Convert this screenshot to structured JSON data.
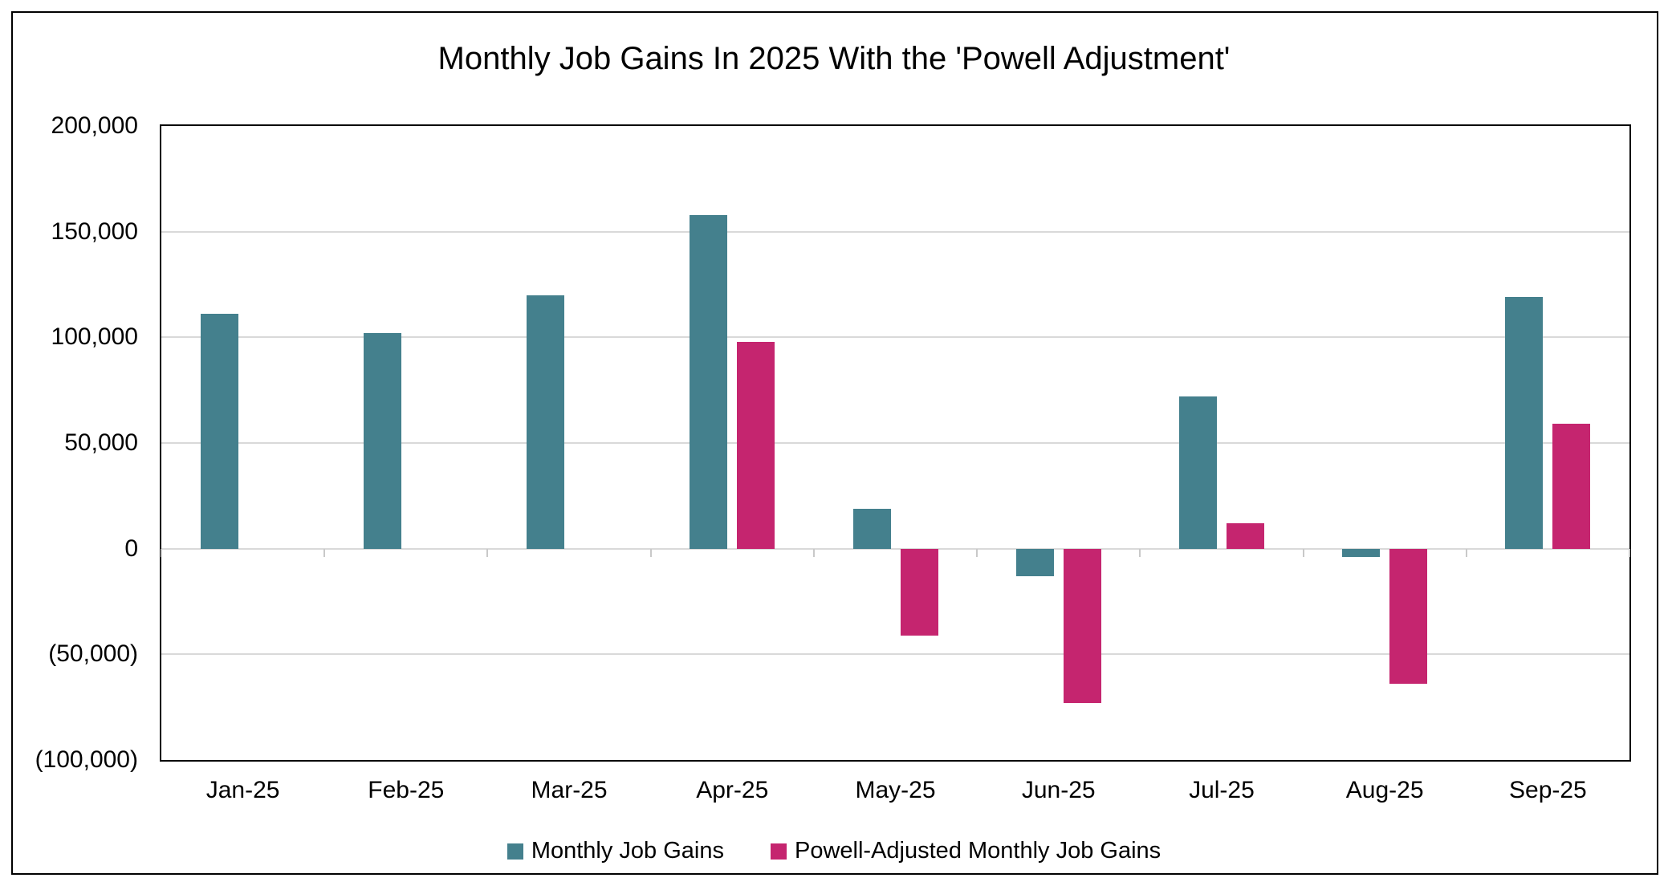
{
  "chart_data": {
    "type": "bar",
    "title": "Monthly Job Gains In 2025 With the 'Powell Adjustment'",
    "categories": [
      "Jan-25",
      "Feb-25",
      "Mar-25",
      "Apr-25",
      "May-25",
      "Jun-25",
      "Jul-25",
      "Aug-25",
      "Sep-25"
    ],
    "series": [
      {
        "name": "Monthly Job Gains",
        "color": "#44808D",
        "values": [
          111000,
          102000,
          120000,
          158000,
          19000,
          -13000,
          72000,
          -4000,
          119000
        ]
      },
      {
        "name": "Powell-Adjusted Monthly Job Gains",
        "color": "#C5256F",
        "values": [
          null,
          null,
          null,
          98000,
          -41000,
          -73000,
          12000,
          -64000,
          59000
        ]
      }
    ],
    "ylim": [
      -100000,
      200000
    ],
    "y_tick_step": 50000,
    "y_tick_labels": [
      "200,000",
      "150,000",
      "100,000",
      "50,000",
      "0",
      "(50,000)",
      "(100,000)"
    ],
    "grid": true,
    "legend_position": "bottom"
  },
  "colors": {
    "background": "#FFFFFF",
    "frame": "#000000",
    "gridline": "#D9D9D9",
    "text": "#000000",
    "series1": "#44808D",
    "series2": "#C5256F"
  }
}
